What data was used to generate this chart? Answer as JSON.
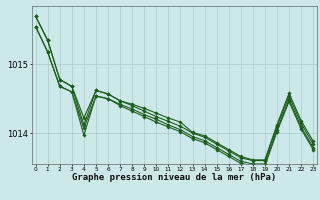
{
  "bg_color": "#cce8e8",
  "grid_color": "#aacccc",
  "line_color": "#1a5c1a",
  "marker_color": "#1a5c1a",
  "xlabel": "Graphe pression niveau de la mer (hPa)",
  "xlabel_fontsize": 6.5,
  "xticks": [
    0,
    1,
    2,
    3,
    4,
    5,
    6,
    7,
    8,
    9,
    10,
    11,
    12,
    13,
    14,
    15,
    16,
    17,
    18,
    19,
    20,
    21,
    22,
    23
  ],
  "ytick_labels": [
    "1014",
    "1015"
  ],
  "ytick_vals": [
    1014.0,
    1015.0
  ],
  "ylim": [
    1013.55,
    1015.85
  ],
  "xlim": [
    -0.3,
    23.3
  ],
  "series": [
    [
      1015.7,
      1015.35,
      1014.78,
      1014.68,
      1014.22,
      1014.62,
      1014.57,
      1014.47,
      1014.42,
      1014.36,
      1014.29,
      1014.22,
      1014.16,
      1014.01,
      1013.96,
      1013.86,
      1013.76,
      1013.66,
      1013.61,
      1013.61,
      1014.12,
      1014.58,
      1014.18,
      1013.88
    ],
    [
      1015.7,
      1015.35,
      1014.78,
      1014.68,
      1014.12,
      1014.62,
      1014.57,
      1014.47,
      1014.4,
      1014.32,
      1014.24,
      1014.17,
      1014.1,
      1014.0,
      1013.94,
      1013.84,
      1013.74,
      1013.64,
      1013.6,
      1013.6,
      1014.1,
      1014.54,
      1014.14,
      1013.84
    ],
    [
      1015.55,
      1015.18,
      1014.68,
      1014.6,
      1014.07,
      1014.54,
      1014.5,
      1014.42,
      1014.35,
      1014.27,
      1014.2,
      1014.12,
      1014.05,
      1013.95,
      1013.89,
      1013.79,
      1013.69,
      1013.59,
      1013.55,
      1013.55,
      1014.05,
      1014.49,
      1014.09,
      1013.79
    ],
    [
      1015.55,
      1015.18,
      1014.68,
      1014.6,
      1013.97,
      1014.54,
      1014.5,
      1014.4,
      1014.32,
      1014.24,
      1014.16,
      1014.09,
      1014.02,
      1013.92,
      1013.86,
      1013.76,
      1013.66,
      1013.56,
      1013.52,
      1013.52,
      1014.02,
      1014.46,
      1014.06,
      1013.76
    ]
  ],
  "series_lw": [
    0.8,
    0.8,
    0.8,
    0.8
  ]
}
